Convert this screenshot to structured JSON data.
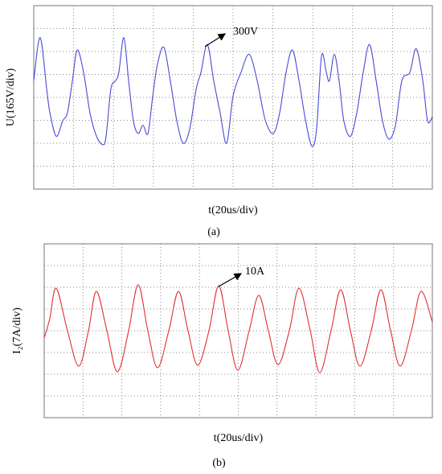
{
  "chart_data": [
    {
      "type": "line",
      "ylabel": "U(165V/div)",
      "xlabel": "t(20us/div)",
      "caption": "(a)",
      "annotation": "300V",
      "color": "#4a4ad8",
      "grid": true,
      "xlim": [
        0,
        200
      ],
      "ylim": [
        -660,
        660
      ],
      "xticks": [
        0,
        20,
        40,
        60,
        80,
        100,
        120,
        140,
        160,
        180,
        200
      ],
      "yticks": [
        -660,
        -495,
        -330,
        -165,
        0,
        165,
        330,
        495,
        660
      ],
      "x": [
        0,
        3.2,
        6.5,
        8.1,
        11.3,
        14.5,
        16.9,
        19.4,
        21.8,
        25,
        28.2,
        31.5,
        34.7,
        36.3,
        38.7,
        41.1,
        42.7,
        45.2,
        47.6,
        50,
        52.4,
        54.8,
        57.3,
        59.7,
        62.1,
        65.3,
        68.5,
        71.8,
        75,
        78.2,
        81.5,
        83.9,
        87.1,
        90.3,
        93.5,
        96.8,
        100,
        104,
        108.1,
        112.1,
        116.1,
        120.2,
        123.4,
        126.6,
        129.8,
        133.1,
        136.3,
        139.5,
        141.9,
        144.4,
        146.8,
        148.4,
        150.8,
        153.2,
        155.6,
        158.9,
        162.1,
        165.3,
        168.5,
        171.8,
        175,
        178.2,
        181.5,
        184.7,
        188.7,
        191.9,
        195.2,
        197.6,
        200
      ],
      "values": [
        120,
        430,
        60,
        -110,
        -280,
        -170,
        -110,
        120,
        340,
        180,
        -110,
        -280,
        -340,
        -280,
        60,
        120,
        180,
        430,
        120,
        -170,
        -260,
        -200,
        -260,
        10,
        240,
        360,
        120,
        -170,
        -330,
        -230,
        60,
        180,
        380,
        120,
        -110,
        -330,
        10,
        180,
        310,
        120,
        -160,
        -260,
        -110,
        180,
        340,
        120,
        -160,
        -350,
        -230,
        300,
        180,
        120,
        310,
        120,
        -170,
        -280,
        -110,
        180,
        380,
        120,
        -170,
        -300,
        -200,
        120,
        180,
        350,
        120,
        -170,
        -140
      ]
    },
    {
      "type": "line",
      "ylabel": "I₂(7A/div)",
      "xlabel": "t(20us/div)",
      "caption": "(b)",
      "annotation": "10A",
      "color": "#e03030",
      "grid": true,
      "xlim": [
        0,
        200
      ],
      "ylim": [
        -28,
        28
      ],
      "xticks": [
        0,
        20,
        40,
        60,
        80,
        100,
        120,
        140,
        160,
        180,
        200
      ],
      "yticks": [
        -28,
        -21,
        -14,
        -7,
        0,
        7,
        14,
        21,
        28
      ],
      "x": [
        0,
        2.9,
        6.2,
        12,
        17.8,
        22.8,
        26.9,
        32.3,
        37.7,
        43.5,
        48.4,
        53.4,
        58.4,
        64.2,
        69.2,
        74.1,
        79.1,
        84.9,
        89.9,
        94.8,
        99.8,
        105.6,
        110.6,
        115.5,
        120.5,
        126.3,
        131.3,
        137.1,
        142,
        147.8,
        152.8,
        157.8,
        162.7,
        168.5,
        173.5,
        178.5,
        183.4,
        189.2,
        194.2,
        200
      ],
      "values": [
        -2.3,
        4,
        13.7,
        0,
        -11.4,
        0,
        12.7,
        0,
        -13.2,
        0,
        14.8,
        0,
        -11.9,
        0,
        12.7,
        0,
        -11.1,
        0,
        14.5,
        0,
        -12.7,
        0,
        11.4,
        0,
        -10.9,
        0,
        13.7,
        0,
        -13.5,
        0,
        13.2,
        0,
        -11.4,
        0,
        13.2,
        0,
        -11.4,
        0,
        12.7,
        2.8
      ]
    }
  ]
}
